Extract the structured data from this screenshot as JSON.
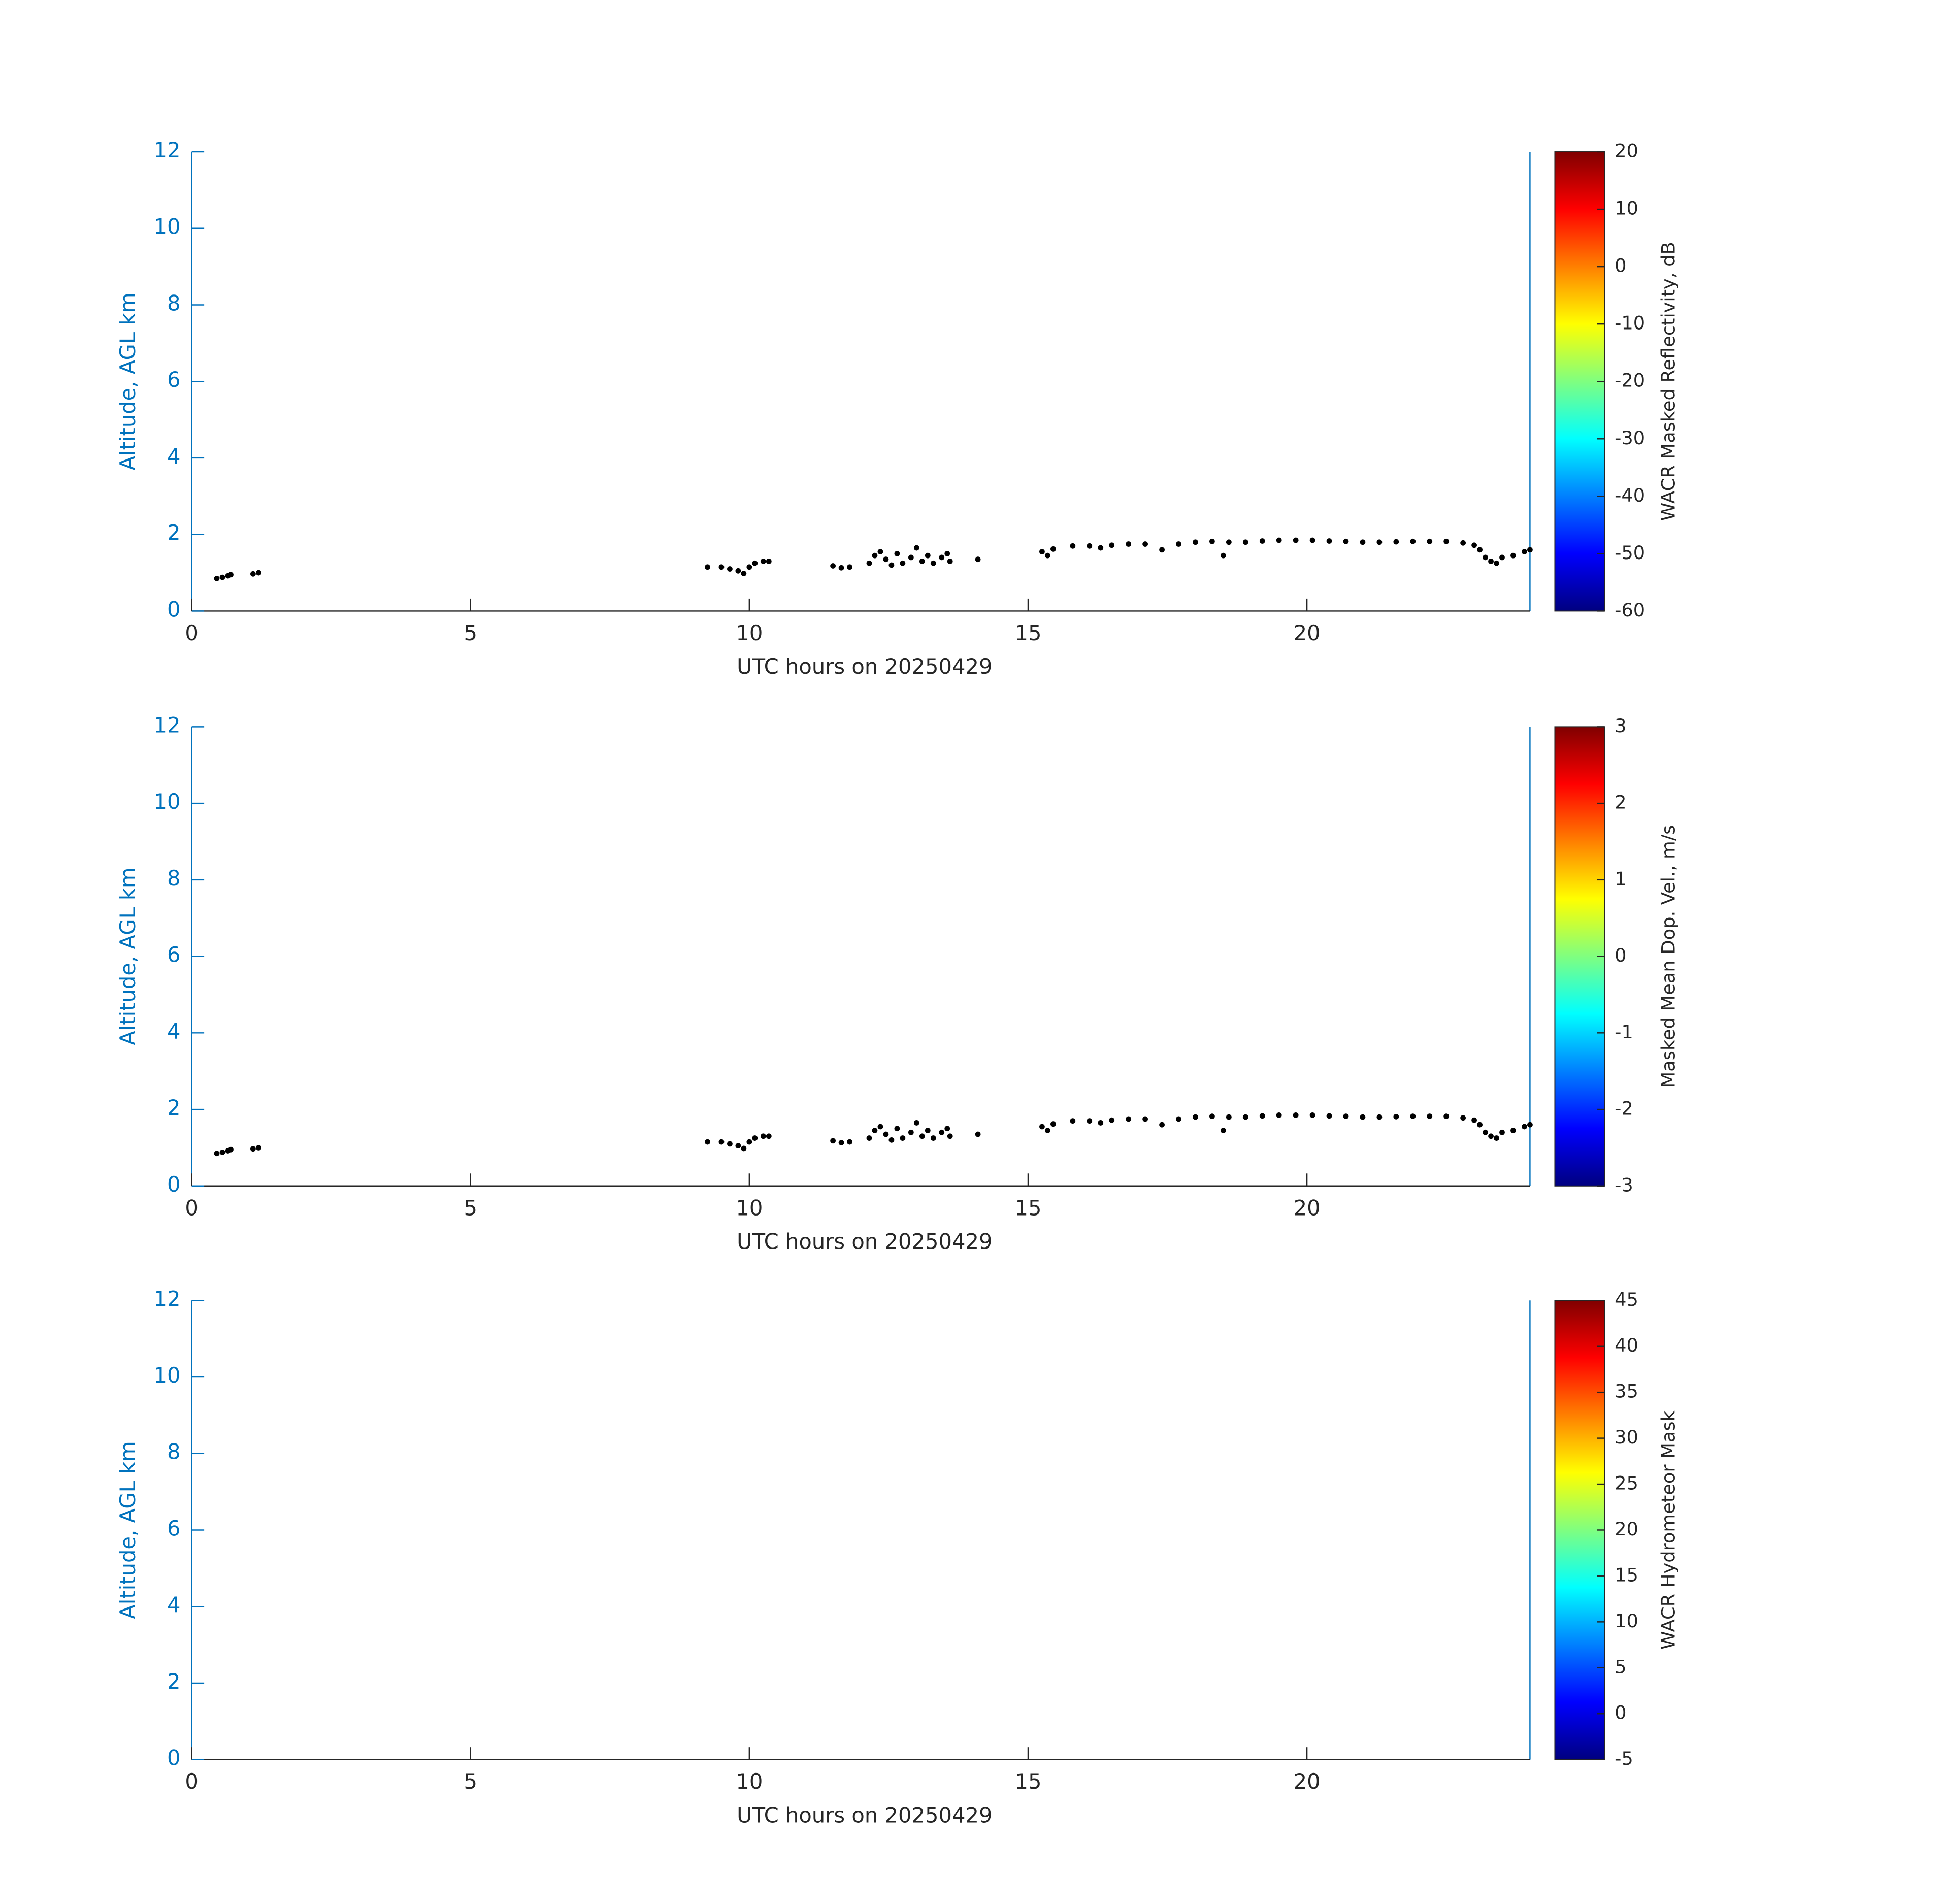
{
  "chart_data": [
    {
      "type": "scatter",
      "color": "#000000",
      "x": [
        0.45,
        0.55,
        0.65,
        0.7,
        1.1,
        1.2,
        9.25,
        9.5,
        9.65,
        9.8,
        9.9,
        10.0,
        10.1,
        10.25,
        10.35,
        11.5,
        11.65,
        11.8,
        12.15,
        12.25,
        12.35,
        12.45,
        12.55,
        12.65,
        12.75,
        12.9,
        13.0,
        13.1,
        13.2,
        13.3,
        13.45,
        13.55,
        13.6,
        14.1,
        15.25,
        15.35,
        15.45,
        15.8,
        16.1,
        16.3,
        16.5,
        16.8,
        17.1,
        17.4,
        17.7,
        18.0,
        18.3,
        18.5,
        18.6,
        18.9,
        19.2,
        19.5,
        19.8,
        20.1,
        20.4,
        20.7,
        21.0,
        21.3,
        21.6,
        21.9,
        22.2,
        22.5,
        22.8,
        23.0,
        23.1,
        23.2,
        23.3,
        23.4,
        23.5,
        23.7,
        23.9,
        24.0
      ],
      "y": [
        0.85,
        0.88,
        0.92,
        0.95,
        0.97,
        1.0,
        1.15,
        1.15,
        1.1,
        1.05,
        0.98,
        1.15,
        1.25,
        1.3,
        1.3,
        1.18,
        1.13,
        1.15,
        1.25,
        1.45,
        1.55,
        1.35,
        1.2,
        1.5,
        1.25,
        1.4,
        1.65,
        1.3,
        1.45,
        1.25,
        1.4,
        1.5,
        1.3,
        1.35,
        1.55,
        1.45,
        1.62,
        1.7,
        1.7,
        1.65,
        1.72,
        1.75,
        1.75,
        1.6,
        1.75,
        1.8,
        1.82,
        1.45,
        1.8,
        1.8,
        1.83,
        1.85,
        1.85,
        1.85,
        1.83,
        1.82,
        1.8,
        1.8,
        1.81,
        1.82,
        1.82,
        1.82,
        1.78,
        1.72,
        1.6,
        1.4,
        1.3,
        1.25,
        1.4,
        1.45,
        1.55,
        1.6
      ],
      "xlim": [
        0,
        24
      ],
      "ylim": [
        0,
        12
      ],
      "xticks": [
        0,
        5,
        10,
        15,
        20
      ],
      "yticks": [
        0,
        2,
        4,
        6,
        8,
        10,
        12
      ],
      "xlabel": "UTC hours on 20250429",
      "ylabel": "Altitude, AGL km",
      "colorbar": {
        "label": "WACR Masked Reflectivity, dB",
        "clim": [
          -60,
          20
        ],
        "cticks": [
          -60,
          -50,
          -40,
          -30,
          -20,
          -10,
          0,
          10,
          20
        ],
        "colormap": "jet"
      }
    },
    {
      "type": "scatter",
      "color": "#000000",
      "x": [
        0.45,
        0.55,
        0.65,
        0.7,
        1.1,
        1.2,
        9.25,
        9.5,
        9.65,
        9.8,
        9.9,
        10.0,
        10.1,
        10.25,
        10.35,
        11.5,
        11.65,
        11.8,
        12.15,
        12.25,
        12.35,
        12.45,
        12.55,
        12.65,
        12.75,
        12.9,
        13.0,
        13.1,
        13.2,
        13.3,
        13.45,
        13.55,
        13.6,
        14.1,
        15.25,
        15.35,
        15.45,
        15.8,
        16.1,
        16.3,
        16.5,
        16.8,
        17.1,
        17.4,
        17.7,
        18.0,
        18.3,
        18.5,
        18.6,
        18.9,
        19.2,
        19.5,
        19.8,
        20.1,
        20.4,
        20.7,
        21.0,
        21.3,
        21.6,
        21.9,
        22.2,
        22.5,
        22.8,
        23.0,
        23.1,
        23.2,
        23.3,
        23.4,
        23.5,
        23.7,
        23.9,
        24.0
      ],
      "y": [
        0.85,
        0.88,
        0.92,
        0.95,
        0.97,
        1.0,
        1.15,
        1.15,
        1.1,
        1.05,
        0.98,
        1.15,
        1.25,
        1.3,
        1.3,
        1.18,
        1.13,
        1.15,
        1.25,
        1.45,
        1.55,
        1.35,
        1.2,
        1.5,
        1.25,
        1.4,
        1.65,
        1.3,
        1.45,
        1.25,
        1.4,
        1.5,
        1.3,
        1.35,
        1.55,
        1.45,
        1.62,
        1.7,
        1.7,
        1.65,
        1.72,
        1.75,
        1.75,
        1.6,
        1.75,
        1.8,
        1.82,
        1.45,
        1.8,
        1.8,
        1.83,
        1.85,
        1.85,
        1.85,
        1.83,
        1.82,
        1.8,
        1.8,
        1.81,
        1.82,
        1.82,
        1.82,
        1.78,
        1.72,
        1.6,
        1.4,
        1.3,
        1.25,
        1.4,
        1.45,
        1.55,
        1.6
      ],
      "xlim": [
        0,
        24
      ],
      "ylim": [
        0,
        12
      ],
      "xticks": [
        0,
        5,
        10,
        15,
        20
      ],
      "yticks": [
        0,
        2,
        4,
        6,
        8,
        10,
        12
      ],
      "xlabel": "UTC hours on 20250429",
      "ylabel": "Altitude, AGL km",
      "colorbar": {
        "label": "Masked Mean Dop. Vel., m/s",
        "clim": [
          -3,
          3
        ],
        "cticks": [
          -3,
          -2,
          -1,
          0,
          1,
          2,
          3
        ],
        "colormap": "jet"
      }
    },
    {
      "type": "scatter",
      "color": "#000000",
      "x": [],
      "y": [],
      "xlim": [
        0,
        24
      ],
      "ylim": [
        0,
        12
      ],
      "xticks": [
        0,
        5,
        10,
        15,
        20
      ],
      "yticks": [
        0,
        2,
        4,
        6,
        8,
        10,
        12
      ],
      "xlabel": "UTC hours on 20250429",
      "ylabel": "Altitude, AGL km",
      "colorbar": {
        "label": "WACR Hydrometeor Mask",
        "clim": [
          -5,
          45
        ],
        "cticks": [
          -5,
          0,
          5,
          10,
          15,
          20,
          25,
          30,
          35,
          40,
          45
        ],
        "colormap": "jet"
      }
    }
  ]
}
